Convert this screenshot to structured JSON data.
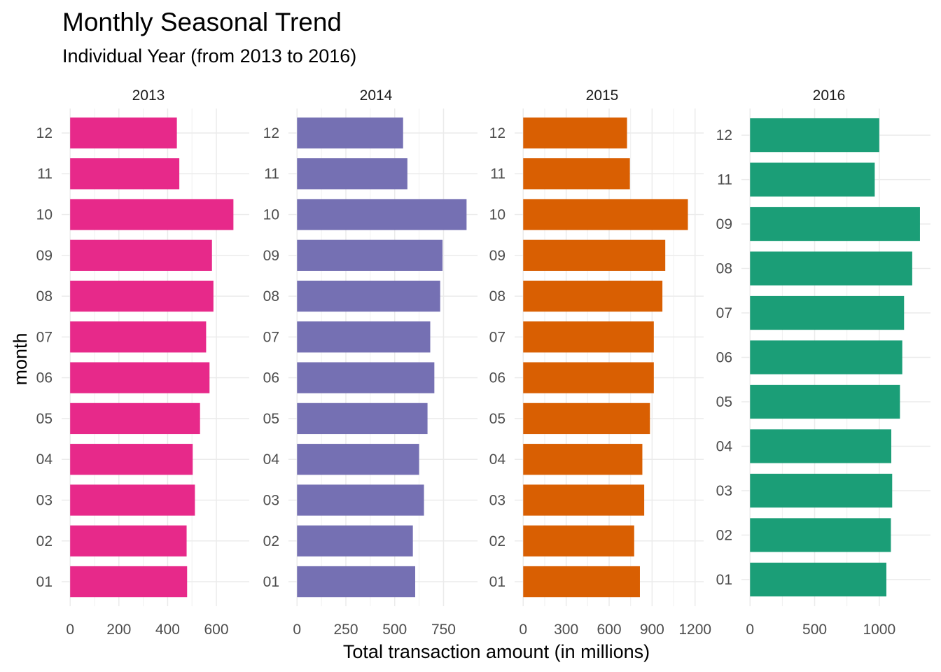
{
  "chart_data": {
    "type": "bar",
    "orientation": "horizontal",
    "title": "Monthly Seasonal Trend",
    "subtitle": "Individual Year (from 2013 to 2016)",
    "xlabel": "Total transaction amount (in millions)",
    "ylabel": "month",
    "grid": true,
    "facets": [
      {
        "label": "2013",
        "color": "#E7298A",
        "categories": [
          "01",
          "02",
          "03",
          "04",
          "05",
          "06",
          "07",
          "08",
          "09",
          "10",
          "11",
          "12"
        ],
        "values": [
          480,
          478,
          512,
          503,
          533,
          572,
          558,
          588,
          582,
          670,
          448,
          438
        ],
        "xlim": [
          0,
          700
        ],
        "xticks": [
          0,
          200,
          400,
          600
        ],
        "xtick_labels": [
          "0",
          "200",
          "400",
          "600"
        ]
      },
      {
        "label": "2014",
        "color": "#7570B3",
        "categories": [
          "01",
          "02",
          "03",
          "04",
          "05",
          "06",
          "07",
          "08",
          "09",
          "10",
          "11",
          "12"
        ],
        "values": [
          605,
          593,
          650,
          625,
          668,
          703,
          682,
          733,
          745,
          868,
          565,
          543
        ],
        "xlim": [
          0,
          880
        ],
        "xticks": [
          0,
          250,
          500,
          750
        ],
        "xtick_labels": [
          "0",
          "250",
          "500",
          "750"
        ]
      },
      {
        "label": "2015",
        "color": "#D95F02",
        "categories": [
          "01",
          "02",
          "03",
          "04",
          "05",
          "06",
          "07",
          "08",
          "09",
          "10",
          "11",
          "12"
        ],
        "values": [
          815,
          775,
          845,
          832,
          885,
          912,
          912,
          972,
          992,
          1150,
          745,
          725
        ],
        "xlim": [
          0,
          1200
        ],
        "xticks": [
          0,
          300,
          600,
          900,
          1200
        ],
        "xtick_labels": [
          "0",
          "300",
          "600",
          "900",
          "1200"
        ]
      },
      {
        "label": "2016",
        "color": "#1B9E77",
        "categories": [
          "01",
          "02",
          "03",
          "04",
          "05",
          "06",
          "07",
          "08",
          "09",
          "11",
          "12"
        ],
        "values": [
          1055,
          1090,
          1100,
          1093,
          1160,
          1178,
          1192,
          1255,
          1315,
          965,
          1000
        ],
        "xlim": [
          0,
          1330
        ],
        "xticks": [
          0,
          500,
          1000
        ],
        "xtick_labels": [
          "0",
          "500",
          "1000"
        ]
      }
    ]
  }
}
